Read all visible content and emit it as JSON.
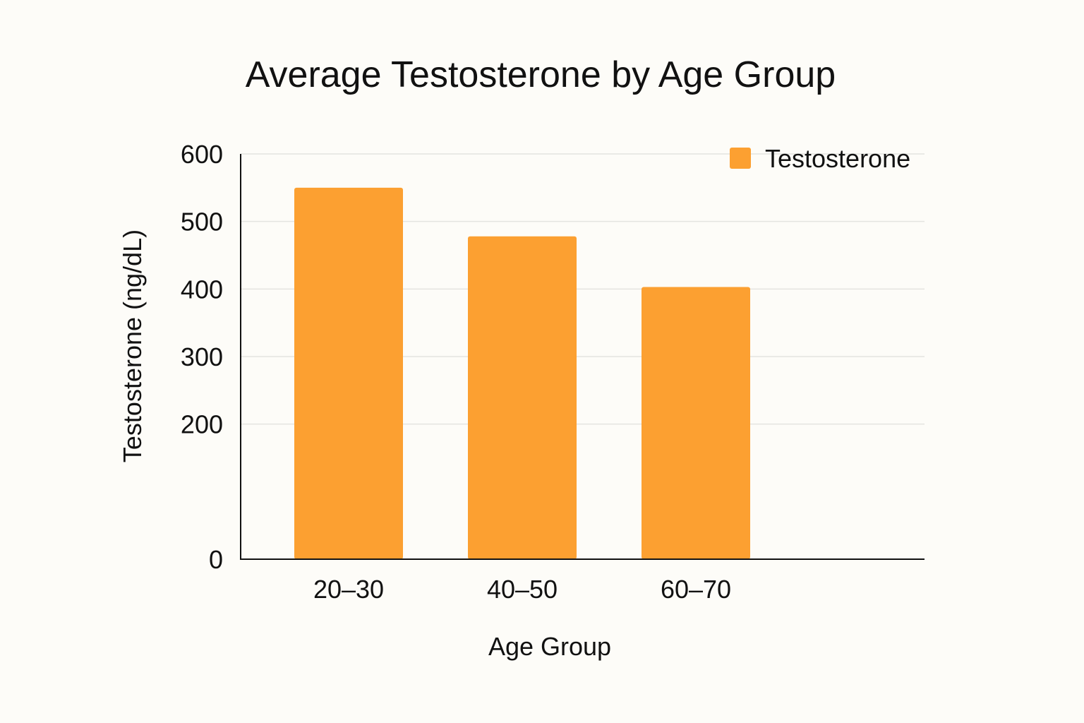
{
  "chart_data": {
    "type": "bar",
    "title": "Average Testosterone by Age Group",
    "xlabel": "Age Group",
    "ylabel": "Testosterone (ng/dL)",
    "categories": [
      "20–30",
      "40–50",
      "60–70"
    ],
    "series": [
      {
        "name": "Testosterone",
        "values": [
          550,
          478,
          403
        ],
        "color": "#fca031"
      }
    ],
    "ylim": [
      0,
      600
    ],
    "yticks": [
      0,
      200,
      300,
      400,
      500,
      600
    ],
    "grid": true,
    "legend_position": "top-right"
  }
}
